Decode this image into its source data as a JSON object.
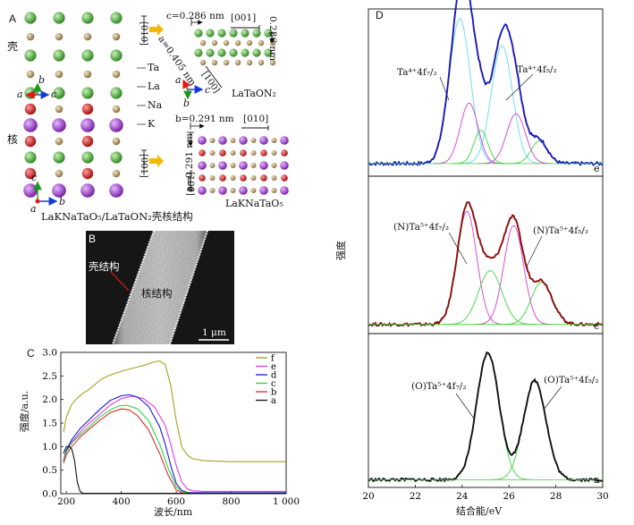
{
  "panelA": {
    "letter": "A",
    "shell_label": "壳",
    "core_label": "核",
    "atoms": {
      "ta": "Ta",
      "la": "La",
      "na": "Na",
      "k": "K"
    },
    "axes_top": {
      "a": "a",
      "b": "b",
      "c": "c"
    },
    "axes_bottom": {
      "a": "a",
      "b": "b",
      "c": "c"
    },
    "dir_010_top": "[010]",
    "dir_001_bottom": "[001]",
    "caption": "LaKNaTaO₅/LaTaON₂壳核结构",
    "latoN2": {
      "dim_c": "c=0.286 nm",
      "dim_a": "a=0.405 nm",
      "dim_side": "0.286 nm",
      "dir_001": "[001]",
      "dir_100": "[100]",
      "axes": {
        "a": "a",
        "b": "b",
        "c": "c"
      },
      "name": "LaTaON₂"
    },
    "lakna": {
      "dim_b": "b=0.291 nm",
      "dim_a": "a=0.291 nm",
      "dir_010": "[010]",
      "dir_100": "[100]",
      "name": "LaKNaTaO₅"
    },
    "colors": {
      "ta": "#a88c5c",
      "la": "#4aa83a",
      "na": "#c41e1e",
      "k": "#9b3fc4",
      "arrow": "#f5b800"
    }
  },
  "panelB": {
    "letter": "B",
    "shell": "壳结构",
    "core": "核结构",
    "scale": "1 μm"
  },
  "panelC": {
    "letter": "C",
    "chart_data": {
      "type": "line",
      "xlabel": "波长/nm",
      "ylabel": "强度/a.u.",
      "xlim": [
        180,
        1000
      ],
      "ylim": [
        0,
        3.0
      ],
      "xticks": [
        200,
        400,
        600,
        800,
        1000
      ],
      "xtick_labels": [
        "200",
        "400",
        "600",
        "800",
        "1 000"
      ],
      "yticks": [
        0,
        0.5,
        1.0,
        1.5,
        2.0,
        2.5,
        3.0
      ],
      "ytick_labels": [
        "0.0",
        "0.5",
        "1.0",
        "1.5",
        "2.0",
        "2.5",
        "3.0"
      ],
      "legend_position": "top-right",
      "series": [
        {
          "name": "f",
          "color": "#a4a21e",
          "x": [
            190,
            200,
            220,
            240,
            260,
            280,
            300,
            330,
            360,
            400,
            440,
            480,
            520,
            540,
            560,
            580,
            600,
            620,
            640,
            660,
            700,
            800,
            1000
          ],
          "y": [
            1.3,
            1.62,
            1.9,
            2.03,
            2.13,
            2.2,
            2.3,
            2.44,
            2.52,
            2.6,
            2.66,
            2.72,
            2.8,
            2.82,
            2.74,
            2.3,
            1.55,
            1.0,
            0.82,
            0.74,
            0.7,
            0.68,
            0.68
          ]
        },
        {
          "name": "e",
          "color": "#e23ae2",
          "x": [
            190,
            200,
            220,
            250,
            280,
            320,
            360,
            400,
            440,
            480,
            520,
            560,
            580,
            600,
            620,
            640,
            660,
            700,
            800,
            1000
          ],
          "y": [
            0.7,
            0.9,
            1.1,
            1.3,
            1.48,
            1.68,
            1.88,
            2.02,
            2.07,
            2.02,
            1.85,
            1.45,
            1.05,
            0.6,
            0.25,
            0.1,
            0.06,
            0.05,
            0.05,
            0.05
          ]
        },
        {
          "name": "d",
          "color": "#1a1ad6",
          "x": [
            190,
            200,
            220,
            250,
            280,
            320,
            360,
            400,
            430,
            460,
            500,
            540,
            560,
            580,
            600,
            620,
            640,
            660,
            700,
            800,
            1000
          ],
          "y": [
            0.7,
            0.92,
            1.15,
            1.38,
            1.55,
            1.78,
            1.98,
            2.08,
            2.1,
            2.05,
            1.85,
            1.42,
            1.05,
            0.6,
            0.22,
            0.07,
            0.03,
            0.02,
            0.02,
            0.02,
            0.02
          ]
        },
        {
          "name": "c",
          "color": "#2ad24a",
          "x": [
            190,
            200,
            220,
            250,
            280,
            320,
            360,
            390,
            420,
            460,
            500,
            540,
            570,
            600,
            620,
            640,
            660,
            700,
            1000
          ],
          "y": [
            0.68,
            0.88,
            1.08,
            1.25,
            1.4,
            1.62,
            1.78,
            1.86,
            1.88,
            1.8,
            1.55,
            1.05,
            0.55,
            0.15,
            0.05,
            0.02,
            0.01,
            0.01,
            0.01
          ]
        },
        {
          "name": "b",
          "color": "#e22a2a",
          "x": [
            190,
            200,
            220,
            250,
            280,
            320,
            360,
            400,
            430,
            460,
            500,
            540,
            570,
            600,
            620,
            640,
            1000
          ],
          "y": [
            0.65,
            0.82,
            1.0,
            1.2,
            1.35,
            1.55,
            1.72,
            1.8,
            1.78,
            1.65,
            1.35,
            0.85,
            0.4,
            0.08,
            0.02,
            0.01,
            0.01
          ]
        },
        {
          "name": "a",
          "color": "#111111",
          "x": [
            190,
            200,
            210,
            220,
            230,
            240,
            250,
            260,
            280,
            300,
            1000
          ],
          "y": [
            0.85,
            1.0,
            1.0,
            0.95,
            0.7,
            0.25,
            0.05,
            0.01,
            0.01,
            0.01,
            0.01
          ]
        }
      ]
    }
  },
  "panelD": {
    "letter": "D",
    "chart_data": {
      "type": "line",
      "xlabel": "结合能/eV",
      "ylabel": "强度",
      "xlim": [
        20,
        30
      ],
      "xticks": [
        20,
        22,
        24,
        26,
        28,
        30
      ],
      "xtick_labels": [
        "20",
        "22",
        "24",
        "26",
        "28",
        "30"
      ],
      "grid": false,
      "subplots": [
        {
          "tag": "e",
          "annotations": [
            "Ta⁴⁺4f₇/₂",
            "Ta⁴⁺4f₅/₂"
          ],
          "envelope_color": "#1a1ab4",
          "baseline": 0.06,
          "peaks": [
            {
              "center": 23.9,
              "height": 0.96,
              "width": 0.45,
              "color": "#5fdcef"
            },
            {
              "center": 25.7,
              "height": 0.78,
              "width": 0.45,
              "color": "#5fdcef"
            },
            {
              "center": 24.3,
              "height": 0.4,
              "width": 0.38,
              "color": "#d63ad6"
            },
            {
              "center": 26.3,
              "height": 0.33,
              "width": 0.4,
              "color": "#d63ad6"
            },
            {
              "center": 24.8,
              "height": 0.22,
              "width": 0.3,
              "color": "#3ad63a"
            },
            {
              "center": 27.3,
              "height": 0.15,
              "width": 0.35,
              "color": "#3ad63a"
            }
          ]
        },
        {
          "tag": "c",
          "annotations": [
            "(N)Ta⁵⁺4f₇/₂",
            "(N)Ta⁵⁺4f₅/₂"
          ],
          "envelope_color": "#8a0a0a",
          "baseline": 0.04,
          "peaks": [
            {
              "center": 24.2,
              "height": 0.8,
              "width": 0.42,
              "color": "#d63ad6"
            },
            {
              "center": 26.2,
              "height": 0.7,
              "width": 0.42,
              "color": "#d63ad6"
            },
            {
              "center": 25.2,
              "height": 0.38,
              "width": 0.5,
              "color": "#3ad63a"
            },
            {
              "center": 27.4,
              "height": 0.3,
              "width": 0.45,
              "color": "#3ad63a"
            }
          ]
        },
        {
          "tag": "a",
          "annotations": [
            "(O)Ta⁵⁺4f₇/₂",
            "(O)Ta⁵⁺4f₅/₂"
          ],
          "envelope_color": "#111111",
          "baseline": 0.03,
          "peaks": [
            {
              "center": 25.1,
              "height": 0.92,
              "width": 0.48,
              "color": "#3ad63a"
            },
            {
              "center": 27.1,
              "height": 0.72,
              "width": 0.48,
              "color": "#3ad63a"
            }
          ]
        }
      ]
    }
  }
}
